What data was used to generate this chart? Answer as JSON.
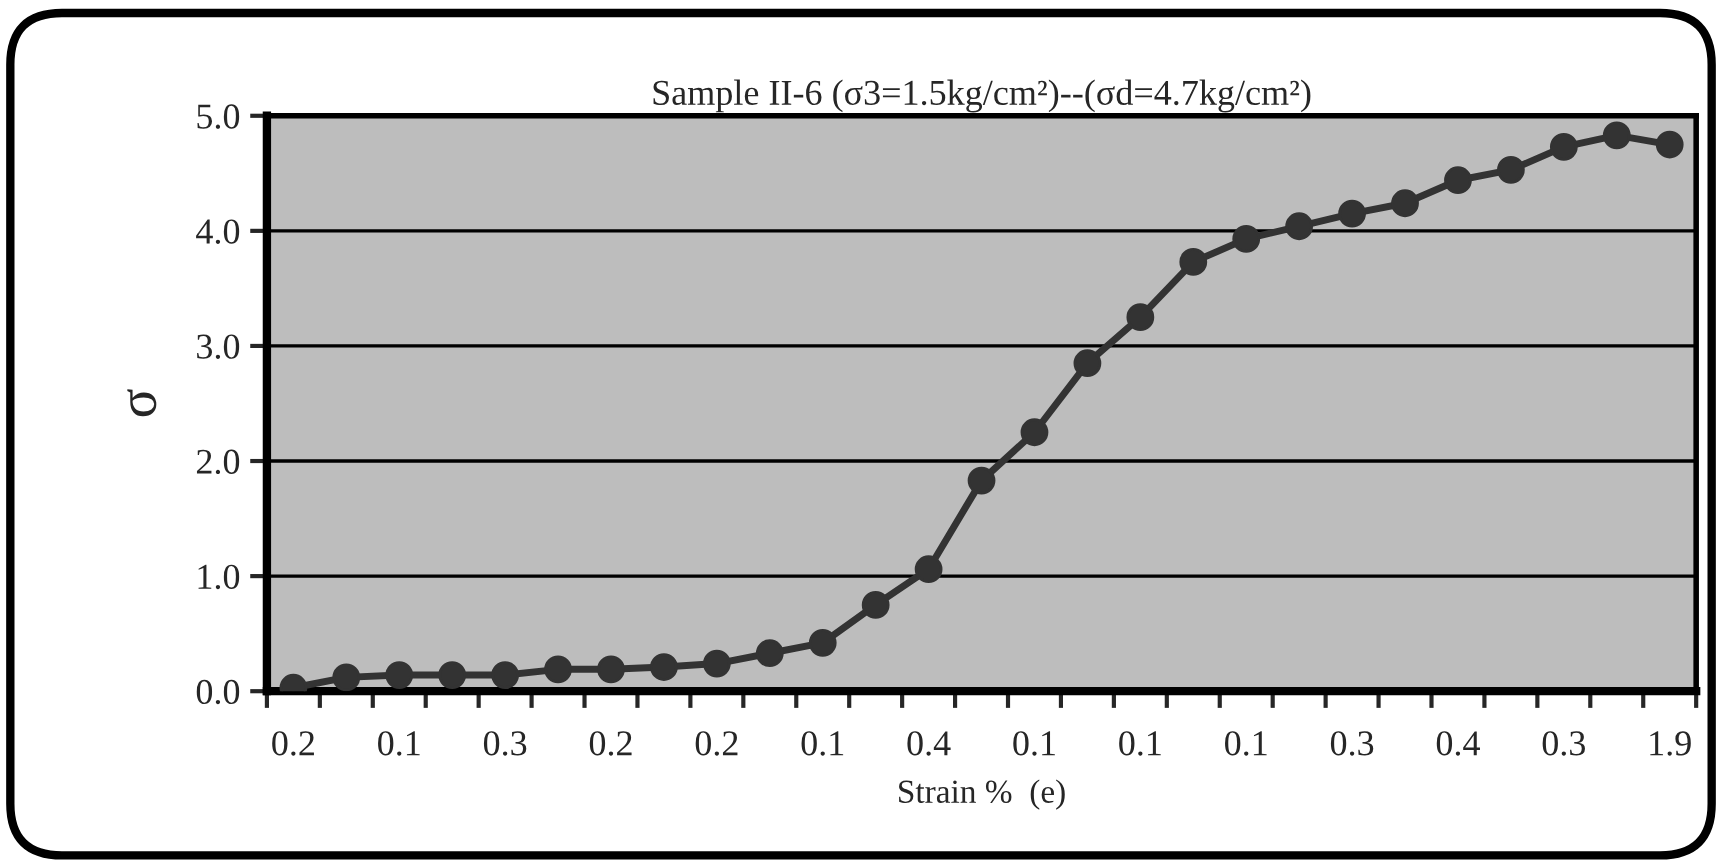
{
  "chart_data": {
    "type": "line",
    "title": "Sample II-6 (σ3=1.5kg/cm²)--(σd=4.7kg/cm²)",
    "xlabel": "Strain %  (e)",
    "ylabel": "σ",
    "categories": [
      "0.2",
      null,
      "0.1",
      null,
      "0.3",
      null,
      "0.2",
      null,
      "0.2",
      null,
      "0.1",
      null,
      "0.4",
      null,
      "0.1",
      null,
      "0.1",
      null,
      "0.1",
      null,
      "0.3",
      null,
      "0.4",
      null,
      "0.3",
      null,
      "1.9"
    ],
    "series": [
      {
        "color": "#333333",
        "values": [
          0.03,
          0.12,
          0.14,
          0.14,
          0.14,
          0.19,
          0.19,
          0.21,
          0.24,
          0.33,
          0.42,
          0.75,
          1.06,
          1.83,
          2.25,
          2.85,
          3.25,
          3.73,
          3.93,
          4.04,
          4.15,
          4.24,
          4.44,
          4.53,
          4.73,
          4.83,
          4.75
        ]
      }
    ],
    "ylim": [
      0,
      5
    ],
    "yticks": [
      {
        "value": 0,
        "label": "0.0"
      },
      {
        "value": 1,
        "label": "1.0"
      },
      {
        "value": 2,
        "label": "2.0"
      },
      {
        "value": 3,
        "label": "3.0"
      },
      {
        "value": 4,
        "label": "4.0"
      },
      {
        "value": 5,
        "label": "5.0"
      }
    ],
    "grid": "y",
    "legend": false,
    "marker": "circle",
    "line_style": "solid"
  }
}
